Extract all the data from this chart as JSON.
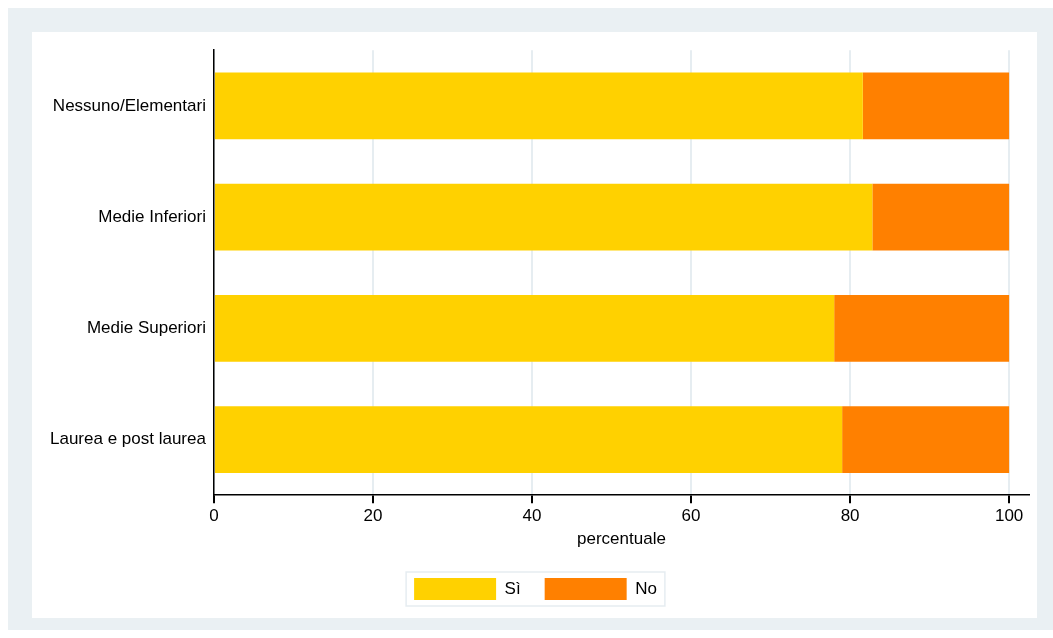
{
  "chart_data": {
    "type": "bar",
    "orientation": "horizontal",
    "stacked": true,
    "xlabel": "percentuale",
    "categories": [
      "Nessuno/Elementari",
      "Medie Inferiori",
      "Medie Superiori",
      "Laurea e post laurea"
    ],
    "series": [
      {
        "name": "Sì",
        "color": "#ffd100",
        "values": [
          81.6,
          82.8,
          78.0,
          79.0
        ]
      },
      {
        "name": "No",
        "color": "#ff8000",
        "values": [
          18.4,
          17.2,
          22.0,
          21.0
        ]
      }
    ],
    "xlim": [
      0,
      102.5
    ],
    "xticks": [
      0,
      20,
      40,
      60,
      80,
      100
    ],
    "grid": "x",
    "legend": "bottom"
  }
}
